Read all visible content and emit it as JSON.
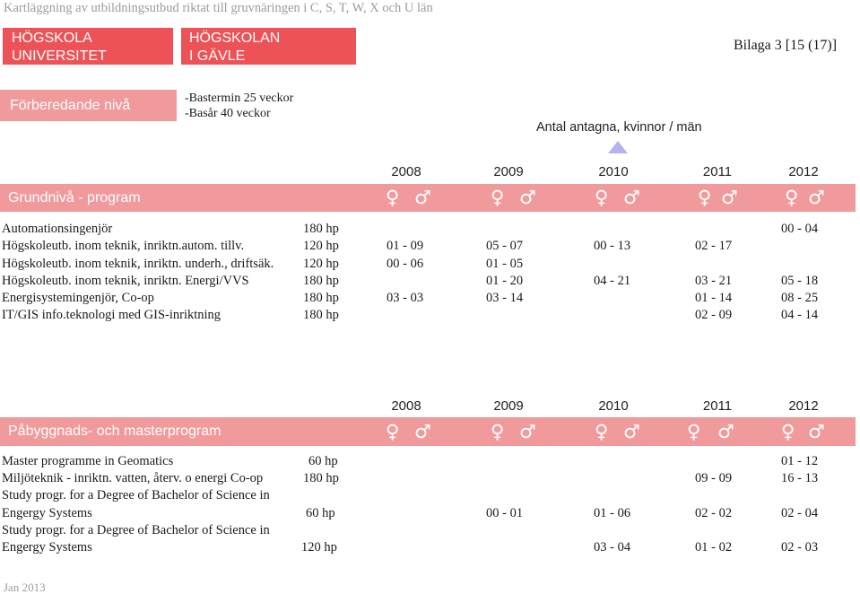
{
  "header": {
    "title": "Kartläggning av utbildningsutbud riktat till gruvnäringen i C, S, T, W, X och U län",
    "logo1": [
      "HÖGSKOLA",
      "UNIVERSITET"
    ],
    "logo2": [
      "HÖGSKOLAN",
      "I GÄVLE"
    ],
    "appendix": "Bilaga 3 [15 (17)]"
  },
  "prep": {
    "label": "Förberedande nivå",
    "lines": [
      "-Bastermin  25 veckor",
      "-Basår  40 veckor"
    ]
  },
  "admitted_label": "Antal antagna, kvinnor / män",
  "years": [
    "2008",
    "2009",
    "2010",
    "2011",
    "2012"
  ],
  "symbols": {
    "female": "♀",
    "male": "♂"
  },
  "section1": {
    "label": "Grundnivå - program",
    "rows": [
      {
        "name": "Automationsingenjör",
        "hp": "180 hp",
        "v": [
          "",
          "",
          "",
          "",
          "00 - 04"
        ]
      },
      {
        "name": "Högskoleutb. inom teknik, inriktn.autom. tillv.",
        "hp": "120 hp",
        "v": [
          "01 - 09",
          "05 - 07",
          "00 - 13",
          "02 - 17",
          ""
        ]
      },
      {
        "name": "Högskoleutb. inom teknik, inriktn. underh., driftsäk.",
        "hp": "120 hp",
        "v": [
          "00 - 06",
          "01 - 05",
          "",
          "",
          ""
        ]
      },
      {
        "name": "Högskoleutb. inom teknik, inriktn. Energi/VVS",
        "hp": "180  hp",
        "v": [
          "",
          "01 - 20",
          "04 - 21",
          "03 - 21",
          "05 - 18"
        ]
      },
      {
        "name": "Energisystemingenjör, Co-op",
        "hp": "180 hp",
        "v": [
          "03 - 03",
          "03 - 14",
          "",
          "01 - 14",
          "08 - 25"
        ]
      },
      {
        "name": "IT/GIS info.teknologi med GIS-inriktning",
        "hp": "180 hp",
        "v": [
          "",
          "",
          "",
          "02 - 09",
          "04 - 14"
        ]
      }
    ]
  },
  "section2": {
    "label": "Påbyggnads- och masterprogram",
    "rows": [
      {
        "name": "Master programme in Geomatics",
        "hp": "60 hp",
        "v": [
          "",
          "",
          "",
          "",
          "01 - 12"
        ]
      },
      {
        "name": "Miljöteknik - inriktn. vatten, återv. o energi Co-op",
        "hp": "180 hp",
        "v": [
          "",
          "",
          "",
          "09 - 09",
          "16 - 13"
        ]
      },
      {
        "name": "Study progr. for a Degree of Bachelor of Science in",
        "hp": "",
        "v": [
          "",
          "",
          "",
          "",
          ""
        ]
      },
      {
        "name": "Engergy Systems",
        "hp": "60 hp",
        "v": [
          "",
          "00 - 01",
          "01 - 06",
          "02 - 02",
          "02 - 04"
        ]
      },
      {
        "name": "Study progr. for a Degree of Bachelor of Science in",
        "hp": "",
        "v": [
          "",
          "",
          "",
          "",
          ""
        ]
      },
      {
        "name": "Engergy Systems",
        "hp": "120 hp",
        "v": [
          "",
          "",
          "03 - 04",
          "01 - 02",
          "02 - 03"
        ]
      }
    ]
  },
  "footer": "Jan 2013"
}
